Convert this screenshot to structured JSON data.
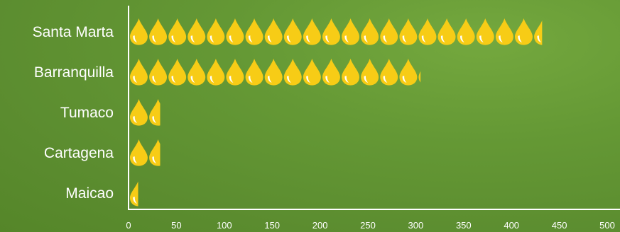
{
  "chart_data": {
    "type": "bar",
    "categories": [
      "Santa Marta",
      "Barranquilla",
      "Tumaco",
      "Cartagena",
      "Maicao"
    ],
    "values": [
      432,
      305,
      33,
      33,
      10
    ],
    "xlim": [
      0,
      500
    ],
    "xticks": [
      0,
      50,
      100,
      150,
      200,
      250,
      300,
      350,
      400,
      450,
      500
    ],
    "xtick_labels": [
      "0",
      "50",
      "100",
      "150",
      "200",
      "250",
      "300",
      "350",
      "400",
      "450",
      "500"
    ],
    "unit_per_icon": 20,
    "orientation": "horizontal",
    "mark_style": "pictograph",
    "mark_icon": "oil-drop-icon",
    "grid": false,
    "colors": {
      "drop": "#f7cc16",
      "drop_shine": "#ffffff",
      "axis": "#ffffff",
      "text": "#ffffff"
    }
  }
}
